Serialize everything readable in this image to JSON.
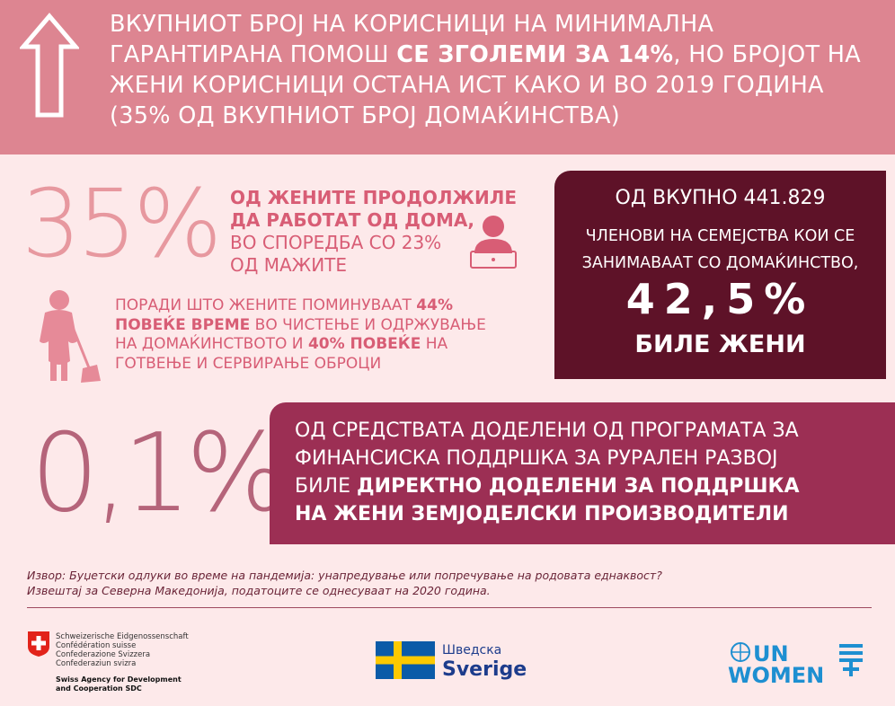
{
  "banner": {
    "line1": "ВКУПНИОТ БРОЈ НА КОРИСНИЦИ НА МИНИМАЛНА",
    "line2_a": "ГАРАНТИРАНА ПОМОШ ",
    "line2_b": "СЕ ЗГОЛЕМИ ЗА 14%",
    "line2_c": ", НО БРОЈОТ НА",
    "line3": "ЖЕНИ КОРИСНИЦИ ОСТАНА ИСТ КАКО И ВО 2019 ГОДИНА",
    "line4": "(35% ОД ВКУПНИОТ БРОЈ ДОМАЌИНСТВА)"
  },
  "stat35": {
    "value": "35%",
    "bold1": "ОД ЖЕНИТЕ ПРОДОЛЖИЛЕ",
    "bold2": "ДА РАБОТАТ ОД ДОМА,",
    "rest1": "ВО СПОРЕДБА СО 23%",
    "rest2": "ОД МАЖИТЕ"
  },
  "housework": {
    "a": "ПОРАДИ ШТО ЖЕНИТЕ ПОМИНУВААТ ",
    "b": "44%",
    "c": "ПОВЕЌЕ ВРЕМЕ",
    "d": " ВО ЧИСТЕЊЕ И ОДРЖУВАЊЕ",
    "e": "НА ДОМАЌИНСТВОТО И ",
    "f": "40% ПОВЕЌЕ",
    "g": " НА",
    "h": "ГОТВЕЊЕ И СЕРВИРАЊЕ ОБРОЦИ"
  },
  "darkbox": {
    "line1": "ОД ВКУПНО 441.829",
    "line2": "ЧЛЕНОВИ НА СЕМЕЈСТВА КОИ СЕ",
    "line3": "ЗАНИМАВААТ СО ДОМАЌИНСТВО,",
    "value": "42,5%",
    "line4": "БИЛЕ ЖЕНИ"
  },
  "stat01": {
    "value": "0,1%",
    "line1": "ОД СРЕДСТВАТА ДОДЕЛЕНИ ОД ПРОГРАМАТА ЗА",
    "line2": "ФИНАНСИСКА ПОДДРШКА ЗА РУРАЛЕН РАЗВОЈ",
    "line3_a": "БИЛЕ ",
    "line3_b": "ДИРЕКТНО ДОДЕЛЕНИ ЗА ПОДДРШКА",
    "line4": "НА ЖЕНИ ЗЕМЈОДЕЛСКИ ПРОИЗВОДИТЕЛИ"
  },
  "source": {
    "line1": "Извор: Буџетски одлуки во време на пандемија: унапредување или попречување на родовата еднаквост?",
    "line2": "Извештај  за Северна Македонија, податоците се однесуваат на 2020 година."
  },
  "logos": {
    "swiss_lines": [
      "Schweizerische Eidgenossenschaft",
      "Confédération suisse",
      "Confederazione Svizzera",
      "Confederaziun svizra"
    ],
    "swiss_sdc": [
      "Swiss Agency for Development",
      "and Cooperation SDC"
    ],
    "sweden_top": "Шведска",
    "sweden_bottom": "Sverige",
    "un_top": "UN",
    "un_bottom": "WOMEN"
  },
  "colors": {
    "banner": "#dd8591",
    "background": "#fde9ea",
    "dark_box": "#5e1228",
    "crimson_box": "#9c2f54",
    "pink_text": "#d85d75"
  }
}
